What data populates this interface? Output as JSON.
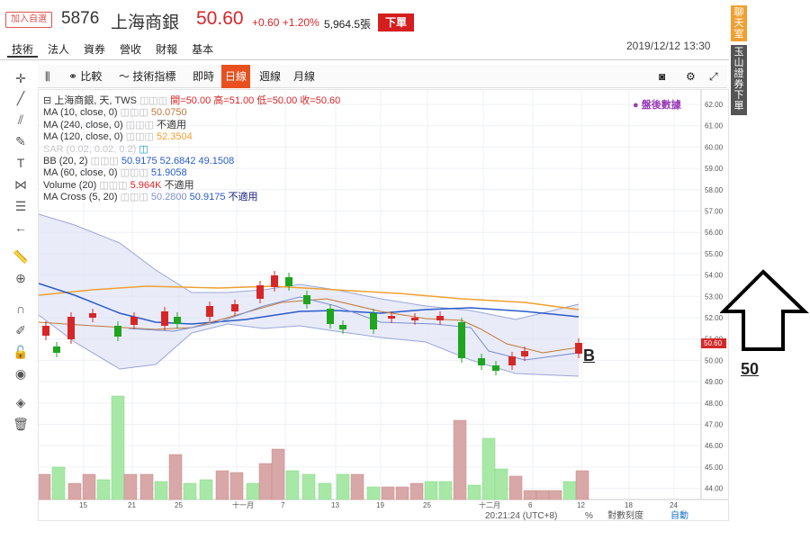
{
  "header": {
    "add_watchlist": "加入自選",
    "code": "5876",
    "name": "上海商銀",
    "price": "50.60",
    "change": "+0.60 +1.20%",
    "volume": "5,964.5張",
    "order_button": "下單"
  },
  "tabs": [
    "技術",
    "法人",
    "資券",
    "營收",
    "財報",
    "基本"
  ],
  "datetime": "2019/12/12 13:30",
  "toolbar": {
    "compare": "比較",
    "indicators": "技術指標",
    "intraday": "即時",
    "daily": "日線",
    "weekly": "週線",
    "monthly": "月線"
  },
  "legend": {
    "main": "上海商銀, 天, TWS",
    "ohlc": "開=50.00  高=51.00  低=50.00  收=50.60",
    "ma10": "MA (10, close, 0)",
    "ma10_val": "50.0750",
    "ma240": "MA (240, close, 0)",
    "ma240_val": "不適用",
    "ma120": "MA (120, close, 0)",
    "ma120_val": "52.3504",
    "sar": "SAR (0.02, 0.02, 0.2)",
    "bb": "BB (20, 2)",
    "bb_vals": [
      "50.9175",
      "52.6842",
      "49.1508"
    ],
    "ma60": "MA (60, close, 0)",
    "ma60_val": "51.9058",
    "volume": "Volume (20)",
    "volume_vals": [
      "5.964K",
      "不適用"
    ],
    "macross": "MA Cross (5, 20)",
    "macross_vals": [
      "50.2800",
      "50.9175",
      "不適用"
    ]
  },
  "after_hours": "盤後數據",
  "side": {
    "chat": "聊天室",
    "order": "玉山證券下單"
  },
  "annotations": {
    "fifty": "50",
    "b": "B"
  },
  "footer": {
    "time": "20:21:24 (UTC+8)",
    "percent": "%",
    "log": "對數刻度",
    "auto": "自動"
  },
  "axis": {
    "y_labels": [
      "62.00",
      "61.00",
      "60.00",
      "59.00",
      "58.00",
      "57.00",
      "56.00",
      "55.00",
      "54.00",
      "53.00",
      "52.00",
      "51.00",
      "50.00",
      "49.00",
      "48.00",
      "47.00",
      "46.00",
      "45.00",
      "44.00"
    ],
    "x_labels": [
      "15",
      "21",
      "25",
      "十一月",
      "7",
      "13",
      "19",
      "25",
      "十二月",
      "6",
      "12",
      "18",
      "24"
    ],
    "last_price_tag": "50.60"
  },
  "colors": {
    "up": "#d62728",
    "down": "#1fa51f",
    "bb_fill": "#dfe3f5",
    "ma120": "#f0a030",
    "ma60": "#2a5bc9"
  }
}
